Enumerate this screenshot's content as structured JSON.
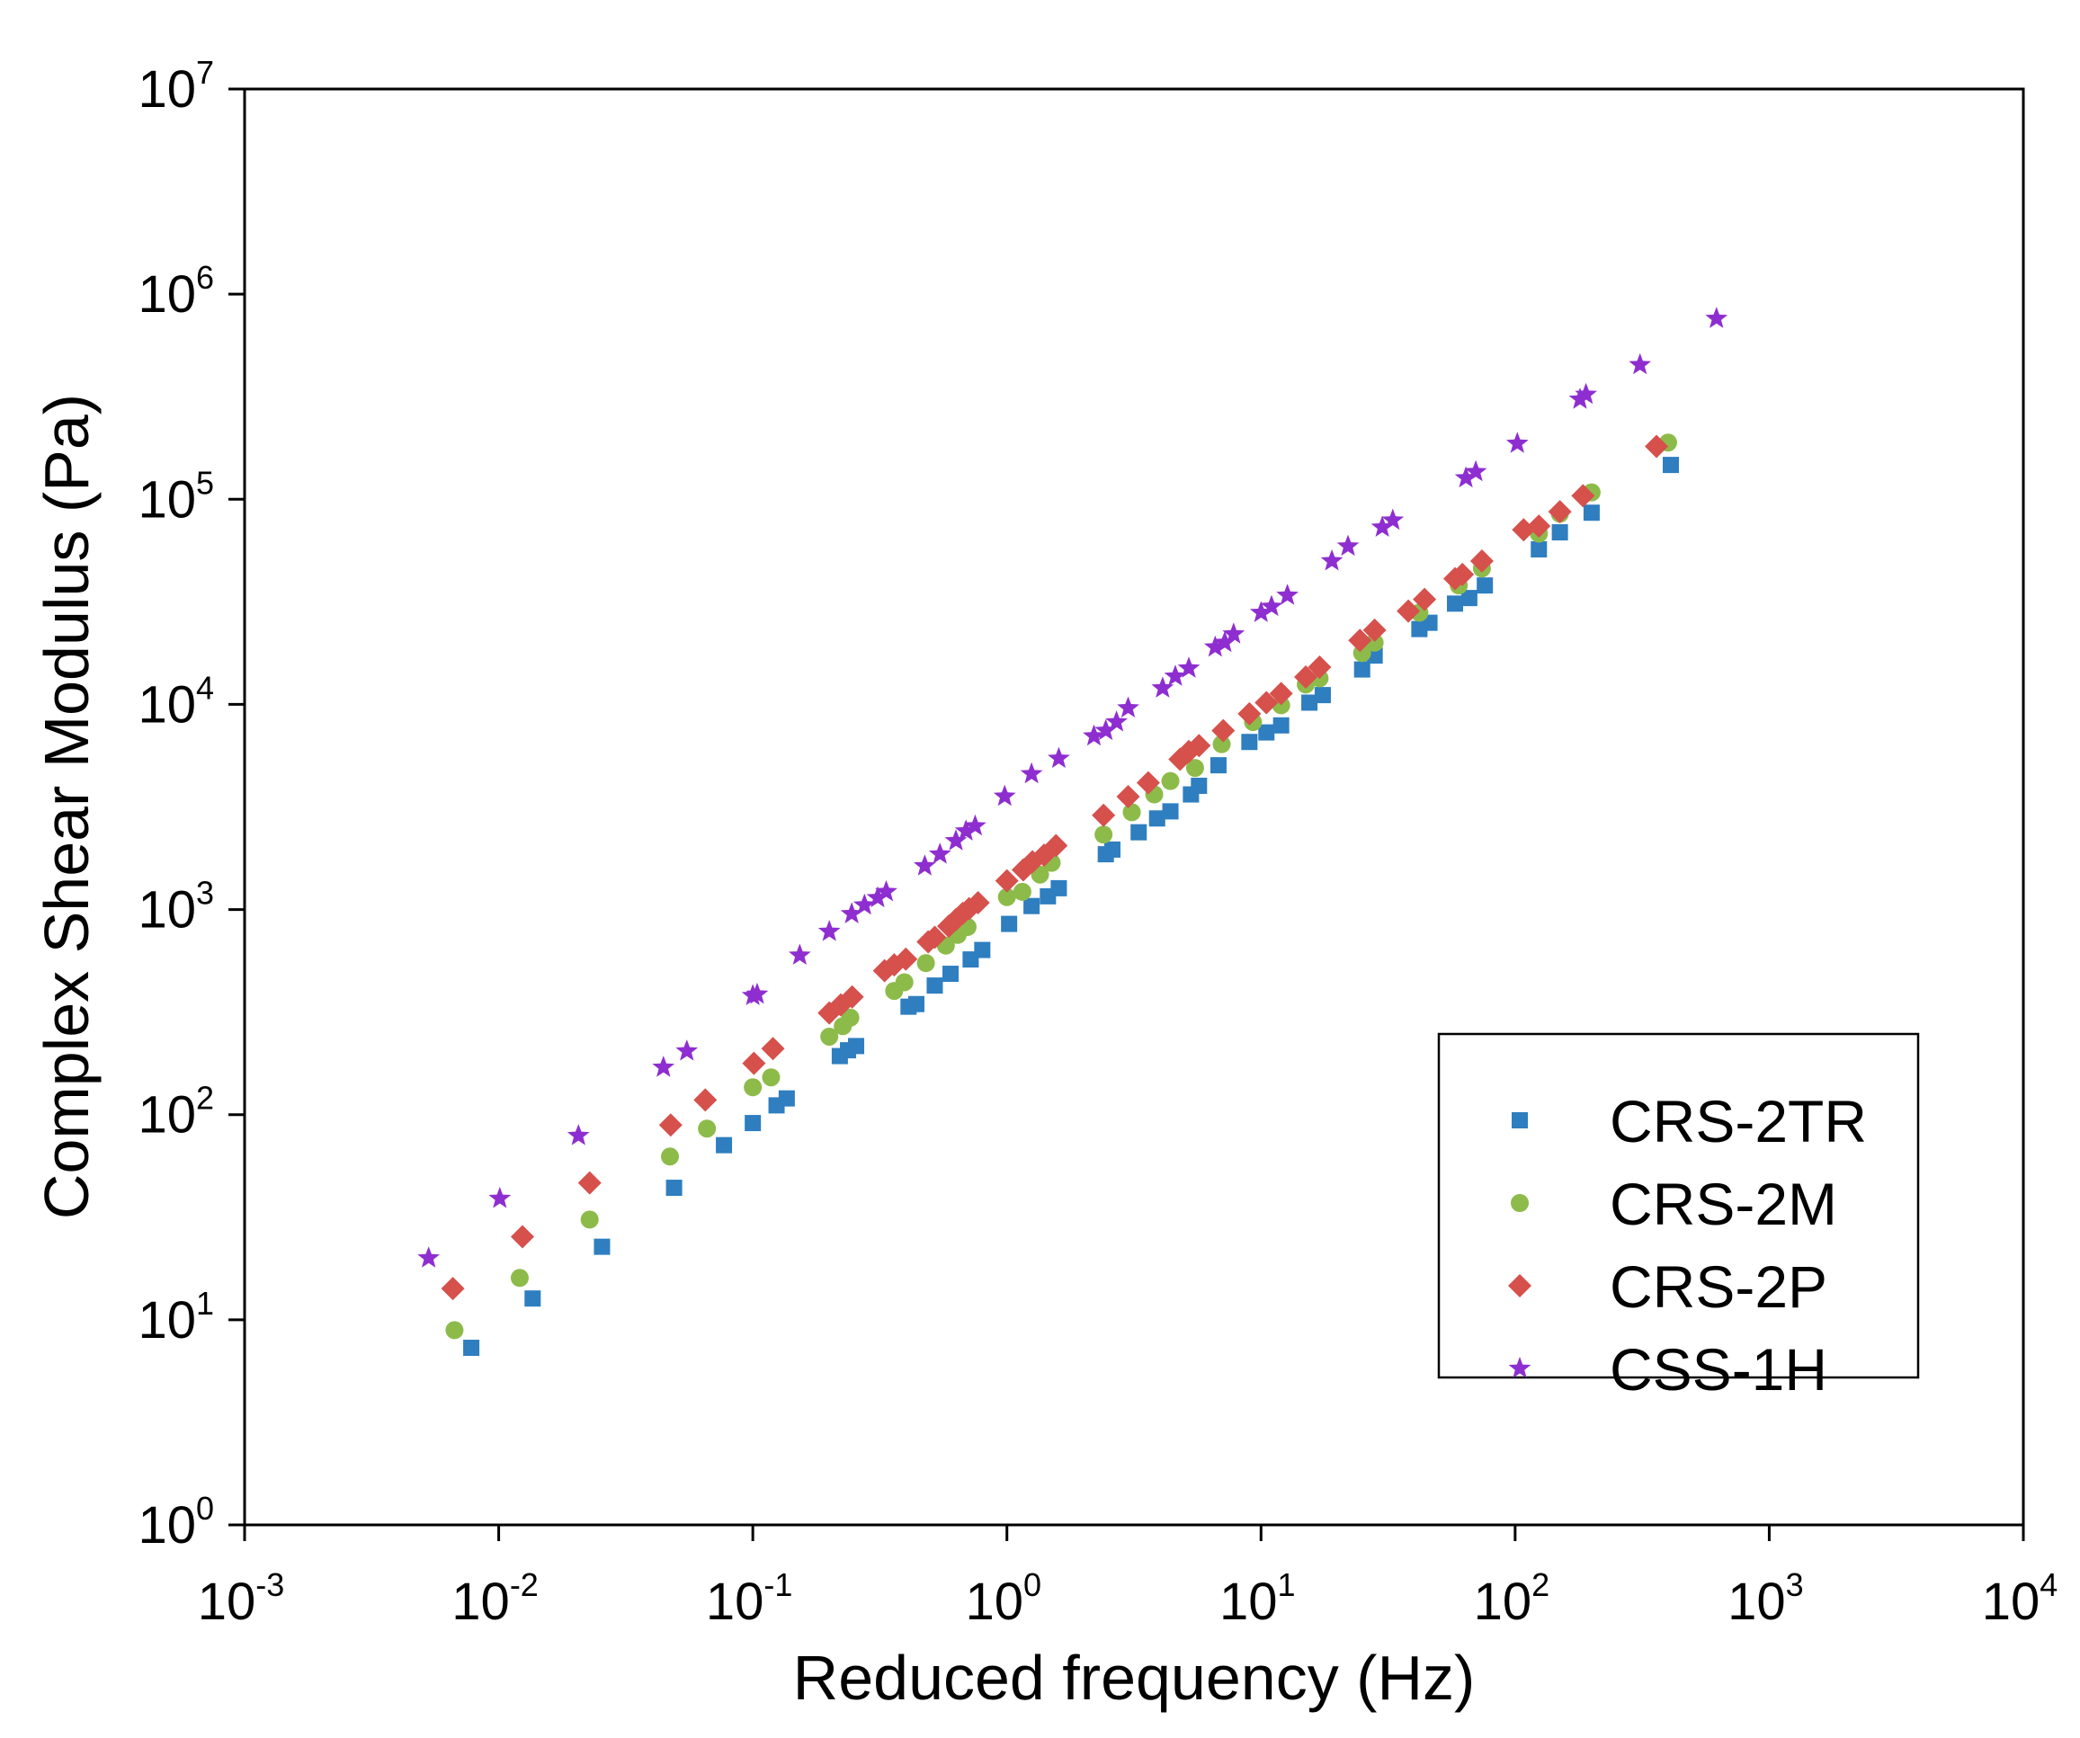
{
  "chart_data": {
    "type": "scatter",
    "xscale": "log",
    "yscale": "log",
    "title": "",
    "xlabel": "Reduced frequency (Hz)",
    "ylabel": "Complex Shear Modulus (Pa)",
    "xlim": [
      0.001,
      10000
    ],
    "ylim": [
      1,
      10000000
    ],
    "xticks": [
      {
        "base": "10",
        "exp": "-3"
      },
      {
        "base": "10",
        "exp": "-2"
      },
      {
        "base": "10",
        "exp": "-1"
      },
      {
        "base": "10",
        "exp": "0"
      },
      {
        "base": "10",
        "exp": "1"
      },
      {
        "base": "10",
        "exp": "2"
      },
      {
        "base": "10",
        "exp": "3"
      },
      {
        "base": "10",
        "exp": "4"
      }
    ],
    "yticks": [
      {
        "base": "10",
        "exp": "0"
      },
      {
        "base": "10",
        "exp": "1"
      },
      {
        "base": "10",
        "exp": "2"
      },
      {
        "base": "10",
        "exp": "3"
      },
      {
        "base": "10",
        "exp": "4"
      },
      {
        "base": "10",
        "exp": "5"
      },
      {
        "base": "10",
        "exp": "6"
      },
      {
        "base": "10",
        "exp": "7"
      }
    ],
    "grid": false,
    "legend_position": "bottom-right",
    "series": [
      {
        "name": "CRS-2TR",
        "marker": "square",
        "color": "#2E7EC0",
        "points": [
          [
            0.0078,
            7.3
          ],
          [
            0.0136,
            12.7
          ],
          [
            0.0255,
            22.7
          ],
          [
            0.049,
            44
          ],
          [
            0.077,
            71
          ],
          [
            0.1,
            91
          ],
          [
            0.124,
            111
          ],
          [
            0.136,
            120
          ],
          [
            0.22,
            193
          ],
          [
            0.237,
            206
          ],
          [
            0.255,
            216
          ],
          [
            0.41,
            336
          ],
          [
            0.44,
            346
          ],
          [
            0.52,
            426
          ],
          [
            0.6,
            486
          ],
          [
            0.72,
            571
          ],
          [
            0.8,
            635
          ],
          [
            1.02,
            851
          ],
          [
            1.25,
            1040
          ],
          [
            1.45,
            1160
          ],
          [
            1.6,
            1270
          ],
          [
            2.45,
            1860
          ],
          [
            2.6,
            1960
          ],
          [
            3.3,
            2380
          ],
          [
            3.9,
            2780
          ],
          [
            4.4,
            3010
          ],
          [
            5.3,
            3640
          ],
          [
            5.7,
            4010
          ],
          [
            6.8,
            5050
          ],
          [
            9.0,
            6560
          ],
          [
            10.5,
            7300
          ],
          [
            12.0,
            7900
          ],
          [
            15.5,
            10200
          ],
          [
            17.5,
            11100
          ],
          [
            25,
            14800
          ],
          [
            28,
            17300
          ],
          [
            42,
            23300
          ],
          [
            46,
            25000
          ],
          [
            58,
            31000
          ],
          [
            66,
            33000
          ],
          [
            76,
            38000
          ],
          [
            124,
            57000
          ],
          [
            150,
            69000
          ],
          [
            200,
            86000
          ],
          [
            410,
            147000
          ]
        ]
      },
      {
        "name": "CRS-2M",
        "marker": "circle",
        "color": "#8DBB4A",
        "points": [
          [
            0.0067,
            8.9
          ],
          [
            0.0121,
            16.0
          ],
          [
            0.0228,
            30.8
          ],
          [
            0.0472,
            62.5
          ],
          [
            0.066,
            85.5
          ],
          [
            0.1,
            136
          ],
          [
            0.118,
            152
          ],
          [
            0.2,
            240
          ],
          [
            0.226,
            270
          ],
          [
            0.242,
            297
          ],
          [
            0.36,
            401
          ],
          [
            0.395,
            442
          ],
          [
            0.48,
            548
          ],
          [
            0.575,
            667
          ],
          [
            0.64,
            752
          ],
          [
            0.7,
            822
          ],
          [
            1.0,
            1150
          ],
          [
            1.15,
            1220
          ],
          [
            1.35,
            1480
          ],
          [
            1.5,
            1690
          ],
          [
            2.4,
            2320
          ],
          [
            3.1,
            2980
          ],
          [
            3.8,
            3640
          ],
          [
            4.4,
            4230
          ],
          [
            5.5,
            4900
          ],
          [
            7.0,
            6400
          ],
          [
            9.3,
            8200
          ],
          [
            12,
            9900
          ],
          [
            15,
            12500
          ],
          [
            17,
            13400
          ],
          [
            25,
            17800
          ],
          [
            28,
            20000
          ],
          [
            42,
            28000
          ],
          [
            60,
            38000
          ],
          [
            74,
            46000
          ],
          [
            124,
            68000
          ],
          [
            150,
            85000
          ],
          [
            200,
            108000
          ],
          [
            400,
            189000
          ]
        ]
      },
      {
        "name": "CRS-2P",
        "marker": "diamond",
        "color": "#D6504C",
        "points": [
          [
            0.0066,
            14.2
          ],
          [
            0.0124,
            25.4
          ],
          [
            0.0228,
            46.5
          ],
          [
            0.0475,
            89
          ],
          [
            0.065,
            118
          ],
          [
            0.101,
            178
          ],
          [
            0.12,
            210
          ],
          [
            0.2,
            313
          ],
          [
            0.222,
            343
          ],
          [
            0.246,
            375
          ],
          [
            0.33,
            503
          ],
          [
            0.36,
            537
          ],
          [
            0.4,
            573
          ],
          [
            0.49,
            696
          ],
          [
            0.52,
            732
          ],
          [
            0.59,
            829
          ],
          [
            0.63,
            893
          ],
          [
            0.67,
            957
          ],
          [
            0.71,
            1010
          ],
          [
            0.77,
            1080
          ],
          [
            1.0,
            1380
          ],
          [
            1.16,
            1560
          ],
          [
            1.26,
            1710
          ],
          [
            1.4,
            1840
          ],
          [
            1.56,
            2050
          ],
          [
            2.4,
            2880
          ],
          [
            3.0,
            3550
          ],
          [
            3.6,
            4150
          ],
          [
            4.8,
            5400
          ],
          [
            5.2,
            5900
          ],
          [
            5.7,
            6300
          ],
          [
            7.1,
            7450
          ],
          [
            9.0,
            9000
          ],
          [
            10.5,
            10200
          ],
          [
            12,
            11300
          ],
          [
            15,
            13600
          ],
          [
            17,
            15200
          ],
          [
            24.5,
            20500
          ],
          [
            28,
            23000
          ],
          [
            38,
            28500
          ],
          [
            44,
            32500
          ],
          [
            58,
            41000
          ],
          [
            62,
            43000
          ],
          [
            74,
            50000
          ],
          [
            108,
            71000
          ],
          [
            124,
            74000
          ],
          [
            150,
            87000
          ],
          [
            185,
            104000
          ],
          [
            360,
            181000
          ]
        ]
      },
      {
        "name": "CSS-1H",
        "marker": "star",
        "color": "#8E2ED0",
        "points": [
          [
            0.0053,
            20
          ],
          [
            0.0101,
            39
          ],
          [
            0.0206,
            79
          ],
          [
            0.0445,
            170
          ],
          [
            0.055,
            204
          ],
          [
            0.1,
            380
          ],
          [
            0.104,
            386
          ],
          [
            0.153,
            598
          ],
          [
            0.2,
            781
          ],
          [
            0.245,
            952
          ],
          [
            0.275,
            1050
          ],
          [
            0.31,
            1140
          ],
          [
            0.335,
            1220
          ],
          [
            0.475,
            1630
          ],
          [
            0.545,
            1860
          ],
          [
            0.63,
            2160
          ],
          [
            0.69,
            2410
          ],
          [
            0.75,
            2550
          ],
          [
            0.98,
            3560
          ],
          [
            1.25,
            4580
          ],
          [
            1.6,
            5450
          ],
          [
            2.2,
            7000
          ],
          [
            2.45,
            7450
          ],
          [
            2.7,
            8200
          ],
          [
            3.0,
            9600
          ],
          [
            4.1,
            12000
          ],
          [
            4.6,
            13700
          ],
          [
            5.2,
            15000
          ],
          [
            6.6,
            19000
          ],
          [
            7.2,
            20000
          ],
          [
            7.8,
            22000
          ],
          [
            10,
            28000
          ],
          [
            11,
            30000
          ],
          [
            12.7,
            34000
          ],
          [
            19,
            50000
          ],
          [
            22,
            59000
          ],
          [
            30,
            73000
          ],
          [
            33,
            79000
          ],
          [
            64,
            127000
          ],
          [
            70,
            136000
          ],
          [
            102,
            187000
          ],
          [
            180,
            307000
          ],
          [
            190,
            324000
          ],
          [
            310,
            452000
          ],
          [
            620,
            760000
          ]
        ]
      }
    ]
  }
}
